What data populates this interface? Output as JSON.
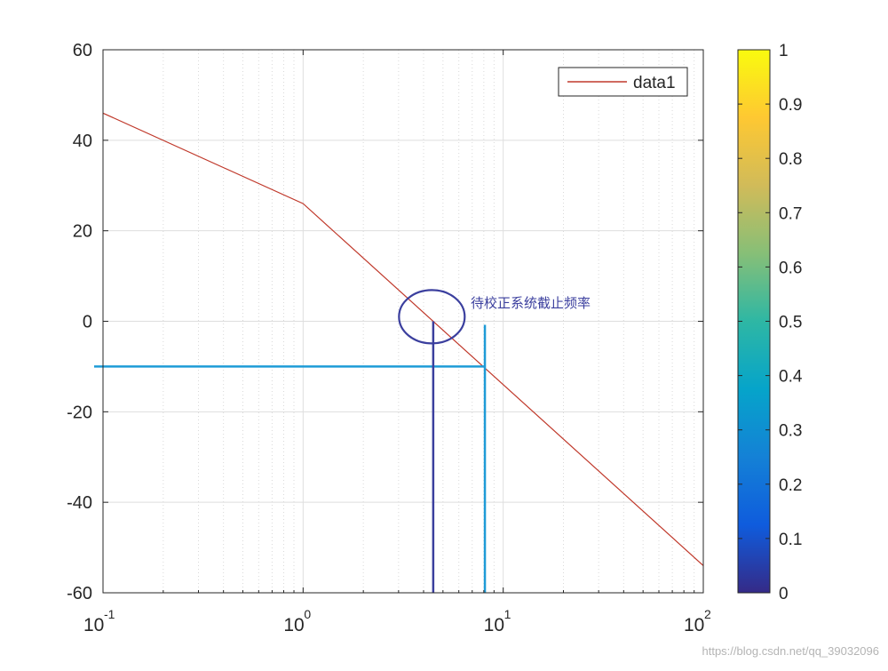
{
  "chart_data": {
    "type": "line",
    "x_scale": "log",
    "xlim": [
      0.1,
      100
    ],
    "ylim": [
      -60,
      60
    ],
    "x_ticks": [
      {
        "value": 0.1,
        "base": "10",
        "exp": "-1"
      },
      {
        "value": 1,
        "base": "10",
        "exp": "0"
      },
      {
        "value": 10,
        "base": "10",
        "exp": "1"
      },
      {
        "value": 100,
        "base": "10",
        "exp": "2"
      }
    ],
    "y_ticks": [
      "-60",
      "-40",
      "-20",
      "0",
      "20",
      "40",
      "60"
    ],
    "grid": true,
    "minor_grid": true,
    "legend_position": "top-right",
    "series": [
      {
        "name": "data1",
        "color": "#c0392b",
        "x": [
          0.1,
          1,
          100
        ],
        "y": [
          46,
          26,
          -54
        ]
      }
    ],
    "annotations": {
      "label": "待校正系统截止频率",
      "circle": {
        "x": 4.4,
        "y": 1,
        "color": "#3b3f9e"
      },
      "crossover_line": {
        "x": 4.47,
        "color": "#3b3f9e"
      },
      "new_cutoff_vline": {
        "x": 8.1,
        "color": "#1e9bd7"
      },
      "hline": {
        "y": -10,
        "x_end": 8.1,
        "color": "#1e9bd7"
      }
    },
    "colorbar": {
      "ticks": [
        "0",
        "0.1",
        "0.2",
        "0.3",
        "0.4",
        "0.5",
        "0.6",
        "0.7",
        "0.8",
        "0.9",
        "1"
      ],
      "colors": [
        "#352a87",
        "#0f5cdd",
        "#1481d6",
        "#06a4ca",
        "#2eb7a4",
        "#87bf77",
        "#d1bb59",
        "#fec832",
        "#f9fb0e"
      ]
    }
  },
  "watermark": "https://blog.csdn.net/qq_39032096"
}
